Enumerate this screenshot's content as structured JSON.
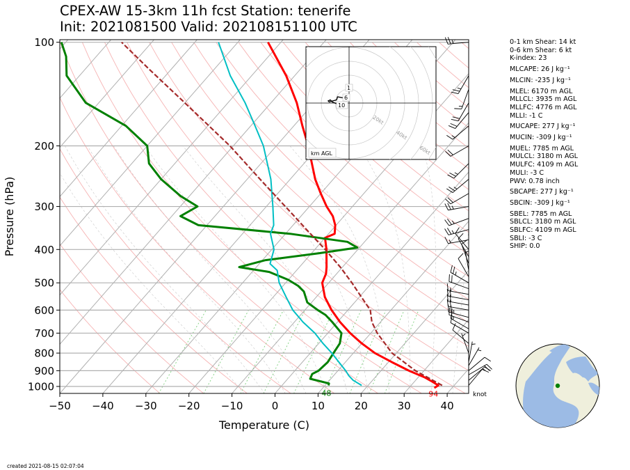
{
  "title_line1": "CPEX-AW 15-3km  11h fcst  Station: tenerife",
  "title_line2": "Init: 2021081500  Valid: 202108151100 UTC",
  "footer": "created 2021-08-15 02:07:04",
  "colors": {
    "temperature": "#ff0000",
    "dewpoint": "#008000",
    "wetbulb": "#00bfc4",
    "parcel": "#a52a2a",
    "isobar": "#b0b0b0",
    "dry_adiabat": "#f4a6a6",
    "mixing_ratio": "#7ccf7c",
    "land": "#efefdc",
    "ocean": "#9cbbe5",
    "station": "#008000"
  },
  "chart_data": {
    "type": "line",
    "xlabel": "Temperature (C)",
    "ylabel": "Pressure (hPa)",
    "xlim": [
      -50,
      45
    ],
    "ylim": [
      1030,
      100
    ],
    "yscale": "log",
    "pressure_ticks": [
      100,
      200,
      300,
      400,
      500,
      600,
      700,
      800,
      900,
      1000
    ],
    "temperature_ticks": [
      -50,
      -40,
      -30,
      -20,
      -10,
      0,
      10,
      20,
      30,
      40
    ],
    "surface_temperature_label": "94",
    "surface_dewpoint_label": "48",
    "wind_units": "knot",
    "series": [
      {
        "role": "temperature",
        "points": [
          [
            1010,
            35.9
          ],
          [
            993,
            36.3
          ],
          [
            970,
            34.3
          ],
          [
            940,
            31.4
          ],
          [
            900,
            26.5
          ],
          [
            850,
            20.8
          ],
          [
            800,
            15.0
          ],
          [
            750,
            10.0
          ],
          [
            700,
            5.2
          ],
          [
            650,
            0.6
          ],
          [
            600,
            -3.8
          ],
          [
            550,
            -8.0
          ],
          [
            500,
            -11.5
          ],
          [
            470,
            -12.5
          ],
          [
            450,
            -13.7
          ],
          [
            400,
            -17.3
          ],
          [
            370,
            -20.0
          ],
          [
            360,
            -18.6
          ],
          [
            340,
            -20.2
          ],
          [
            320,
            -22.6
          ],
          [
            300,
            -26.0
          ],
          [
            275,
            -30.0
          ],
          [
            250,
            -34.2
          ],
          [
            200,
            -42.6
          ],
          [
            175,
            -48.0
          ],
          [
            150,
            -54.0
          ],
          [
            125,
            -62.0
          ],
          [
            100,
            -73.0
          ]
        ]
      },
      {
        "role": "dewpoint",
        "points": [
          [
            993,
            10.8
          ],
          [
            980,
            10.5
          ],
          [
            950,
            5.2
          ],
          [
            920,
            4.7
          ],
          [
            900,
            5.5
          ],
          [
            850,
            5.9
          ],
          [
            800,
            5.4
          ],
          [
            750,
            4.9
          ],
          [
            700,
            3.2
          ],
          [
            650,
            -1.2
          ],
          [
            620,
            -4.2
          ],
          [
            600,
            -7.0
          ],
          [
            570,
            -11.0
          ],
          [
            530,
            -14.0
          ],
          [
            510,
            -16.5
          ],
          [
            490,
            -20.0
          ],
          [
            465,
            -26.0
          ],
          [
            450,
            -34.0
          ],
          [
            430,
            -29.4
          ],
          [
            410,
            -18.2
          ],
          [
            395,
            -10.5
          ],
          [
            380,
            -14.0
          ],
          [
            360,
            -29.0
          ],
          [
            340,
            -52.0
          ],
          [
            320,
            -58.0
          ],
          [
            300,
            -56.0
          ],
          [
            280,
            -62.0
          ],
          [
            250,
            -70.0
          ],
          [
            225,
            -76.0
          ],
          [
            200,
            -80.0
          ],
          [
            175,
            -89.0
          ],
          [
            150,
            -103.0
          ],
          [
            125,
            -113.0
          ],
          [
            110,
            -117.0
          ],
          [
            100,
            -121.0
          ]
        ]
      },
      {
        "role": "wetbulb",
        "points": [
          [
            993,
            18.5
          ],
          [
            960,
            15.5
          ],
          [
            930,
            13.5
          ],
          [
            900,
            11.8
          ],
          [
            850,
            8.5
          ],
          [
            800,
            5.0
          ],
          [
            750,
            1.0
          ],
          [
            700,
            -3.0
          ],
          [
            650,
            -8.0
          ],
          [
            600,
            -12.8
          ],
          [
            550,
            -17.0
          ],
          [
            500,
            -21.5
          ],
          [
            460,
            -24.5
          ],
          [
            440,
            -27.5
          ],
          [
            400,
            -29.5
          ],
          [
            360,
            -33.5
          ],
          [
            340,
            -34.5
          ],
          [
            300,
            -38.5
          ],
          [
            250,
            -44.5
          ],
          [
            200,
            -53.0
          ],
          [
            175,
            -59.0
          ],
          [
            150,
            -66.0
          ],
          [
            125,
            -75.0
          ],
          [
            100,
            -84.5
          ]
        ]
      },
      {
        "role": "parcel",
        "points": [
          [
            993,
            37.2
          ],
          [
            900,
            28.0
          ],
          [
            800,
            19.0
          ],
          [
            700,
            11.5
          ],
          [
            650,
            8.0
          ],
          [
            600,
            5.2
          ],
          [
            550,
            0.5
          ],
          [
            500,
            -4.6
          ],
          [
            450,
            -10.5
          ],
          [
            400,
            -17.6
          ],
          [
            350,
            -26.0
          ],
          [
            300,
            -35.6
          ],
          [
            250,
            -47.0
          ],
          [
            200,
            -60.8
          ],
          [
            150,
            -80.0
          ],
          [
            120,
            -95.0
          ],
          [
            100,
            -107.0
          ]
        ]
      }
    ],
    "wind_barbs": [
      {
        "p": 993,
        "dir": 40,
        "speed": 10
      },
      {
        "p": 960,
        "dir": 50,
        "speed": 15
      },
      {
        "p": 925,
        "dir": 60,
        "speed": 20
      },
      {
        "p": 900,
        "dir": 50,
        "speed": 10
      },
      {
        "p": 870,
        "dir": 30,
        "speed": 5
      },
      {
        "p": 850,
        "dir": 10,
        "speed": 5
      },
      {
        "p": 800,
        "dir": 340,
        "speed": 5
      },
      {
        "p": 750,
        "dir": 310,
        "speed": 10
      },
      {
        "p": 700,
        "dir": 300,
        "speed": 10
      },
      {
        "p": 680,
        "dir": 300,
        "speed": 15
      },
      {
        "p": 650,
        "dir": 290,
        "speed": 20
      },
      {
        "p": 630,
        "dir": 285,
        "speed": 25
      },
      {
        "p": 600,
        "dir": 280,
        "speed": 20
      },
      {
        "p": 580,
        "dir": 280,
        "speed": 20
      },
      {
        "p": 560,
        "dir": 280,
        "speed": 20
      },
      {
        "p": 540,
        "dir": 280,
        "speed": 15
      },
      {
        "p": 520,
        "dir": 290,
        "speed": 20
      },
      {
        "p": 500,
        "dir": 300,
        "speed": 25
      },
      {
        "p": 480,
        "dir": 330,
        "speed": 10
      },
      {
        "p": 460,
        "dir": 350,
        "speed": 5
      },
      {
        "p": 440,
        "dir": 340,
        "speed": 10
      },
      {
        "p": 420,
        "dir": 330,
        "speed": 10
      },
      {
        "p": 400,
        "dir": 320,
        "speed": 10
      },
      {
        "p": 375,
        "dir": 260,
        "speed": 15
      },
      {
        "p": 350,
        "dir": 255,
        "speed": 25
      },
      {
        "p": 325,
        "dir": 250,
        "speed": 25
      },
      {
        "p": 300,
        "dir": 260,
        "speed": 25
      },
      {
        "p": 275,
        "dir": 240,
        "speed": 20
      },
      {
        "p": 250,
        "dir": 230,
        "speed": 25
      },
      {
        "p": 225,
        "dir": 225,
        "speed": 25
      },
      {
        "p": 200,
        "dir": 240,
        "speed": 20
      },
      {
        "p": 175,
        "dir": 230,
        "speed": 15
      },
      {
        "p": 160,
        "dir": 220,
        "speed": 20
      },
      {
        "p": 150,
        "dir": 210,
        "speed": 20
      },
      {
        "p": 137,
        "dir": 200,
        "speed": 15
      },
      {
        "p": 125,
        "dir": 210,
        "speed": 25
      },
      {
        "p": 100,
        "dir": 265,
        "speed": 25
      }
    ]
  },
  "hodograph": {
    "label": "km AGL",
    "ring_labels": [
      "20kt",
      "40kt",
      "60kt",
      "80kt"
    ],
    "height_labels": [
      "1",
      "6",
      "10"
    ],
    "trace": [
      [
        -3,
        -1.5
      ],
      [
        -8,
        0.5
      ],
      [
        -9,
        1.5
      ],
      [
        -10,
        1
      ],
      [
        -9.5,
        0.5
      ],
      [
        -8,
        1
      ],
      [
        -6,
        1.5
      ],
      [
        -5.5,
        3
      ],
      [
        -3,
        2.5
      ],
      [
        -2,
        3.5
      ],
      [
        0,
        3
      ]
    ]
  },
  "indices": [
    {
      "text": "0-1 km Shear: 14 kt"
    },
    {
      "text": "0-6 km Shear: 6 kt"
    },
    {
      "text": "K-index: 23"
    },
    {
      "text": "MLCAPE: 26 J kg⁻¹",
      "gap": true
    },
    {
      "text": "MLCIN: -235 J kg⁻¹",
      "gap": true
    },
    {
      "text": "MLEL: 6170 m AGL",
      "gap": true
    },
    {
      "text": "MLLCL: 3935 m AGL"
    },
    {
      "text": "MLLFC: 4776 m AGL"
    },
    {
      "text": "MLLI: -1 C"
    },
    {
      "text": "MUCAPE: 277 J kg⁻¹",
      "gap": true
    },
    {
      "text": "MUCIN: -309 J kg⁻¹",
      "gap": true
    },
    {
      "text": "MUEL: 7785 m AGL",
      "gap": true
    },
    {
      "text": "MULCL: 3180 m AGL"
    },
    {
      "text": "MULFC: 4109 m AGL"
    },
    {
      "text": "MULI: -3 C"
    },
    {
      "text": "PWV: 0.78 inch"
    },
    {
      "text": "SBCAPE: 277 J kg⁻¹",
      "gap": true
    },
    {
      "text": "SBCIN: -309 J kg⁻¹",
      "gap": true
    },
    {
      "text": "SBEL: 7785 m AGL",
      "gap": true
    },
    {
      "text": "SBLCL: 3180 m AGL"
    },
    {
      "text": "SBLFC: 4109 m AGL"
    },
    {
      "text": "SBLI: -3 C"
    },
    {
      "text": "SHIP: 0.0"
    }
  ],
  "station": {
    "lat": 28.3,
    "lon": -16.5
  }
}
